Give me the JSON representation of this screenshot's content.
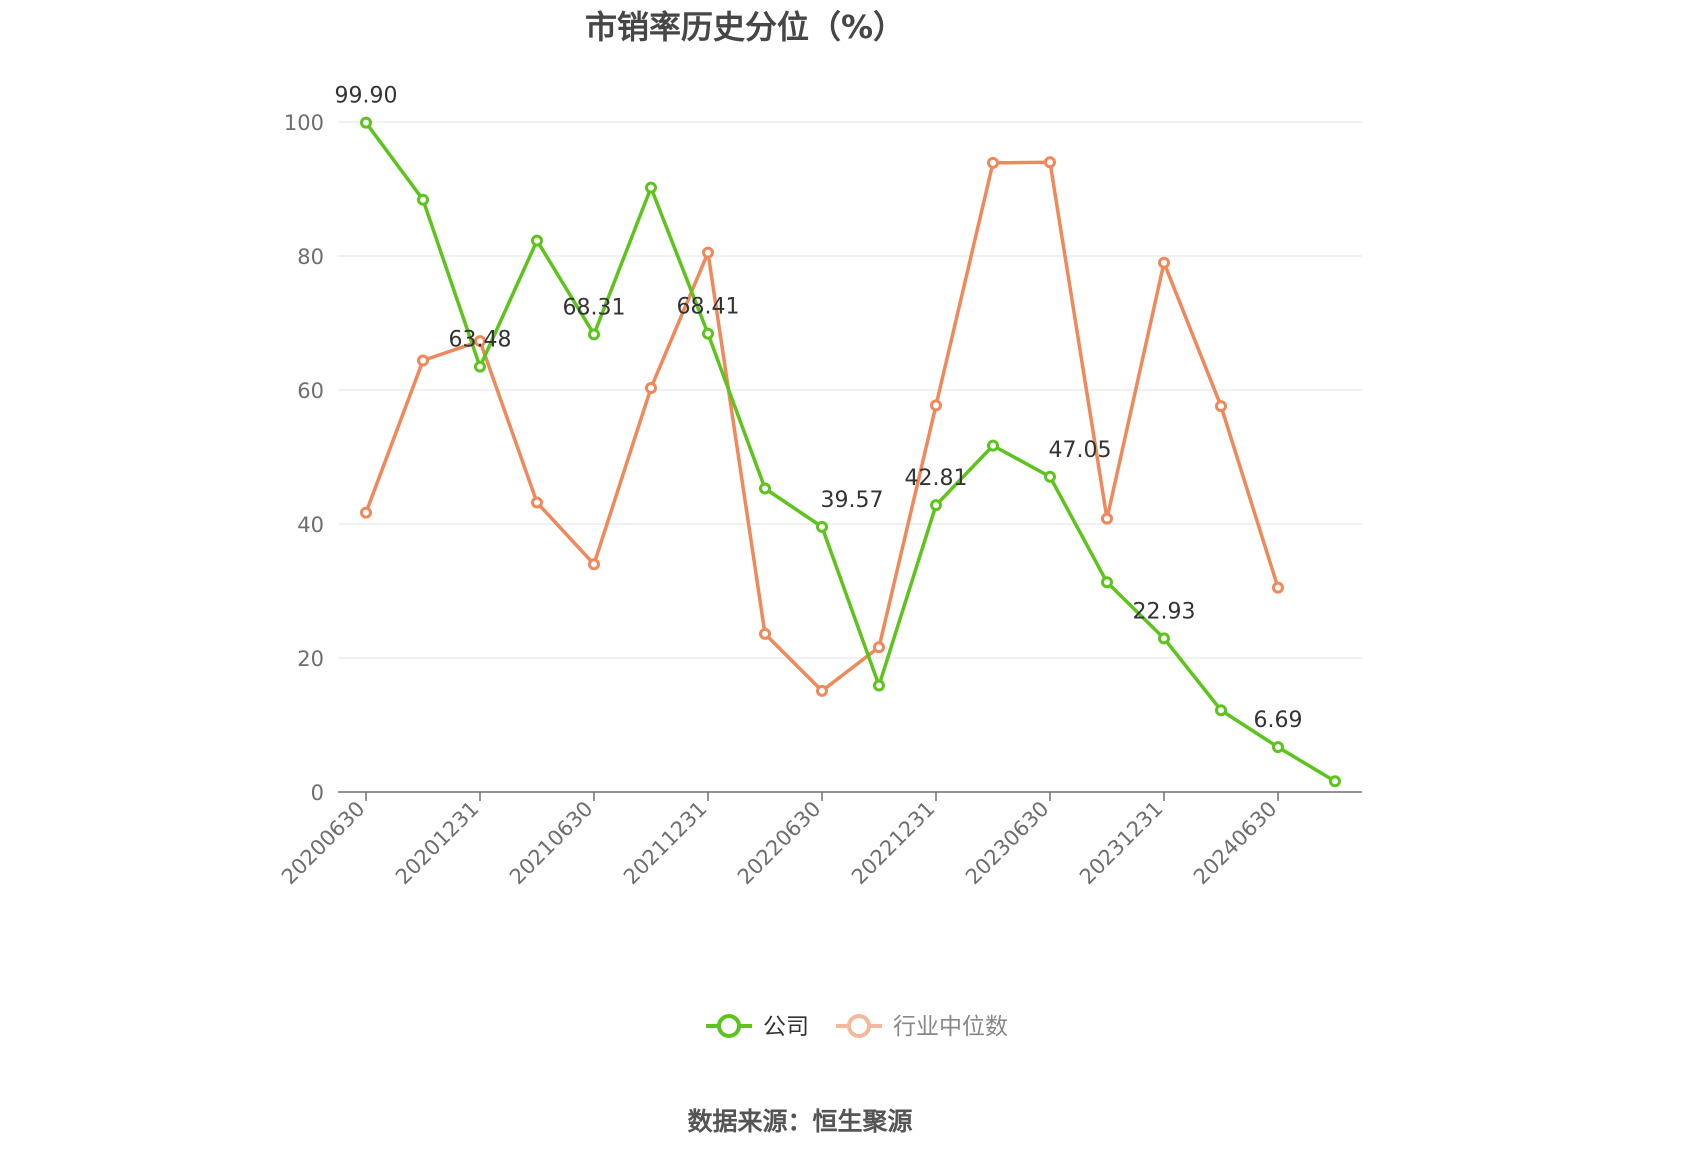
{
  "chart_data": {
    "type": "line",
    "title": "市销率历史分位（%）",
    "source": "数据来源：恒生聚源",
    "ylim": [
      0,
      100
    ],
    "yticks": [
      "0",
      "20",
      "40",
      "60",
      "80",
      "100"
    ],
    "x": [
      "20200630",
      "20200930",
      "20201231",
      "20210331",
      "20210630",
      "20210930",
      "20211231",
      "20220331",
      "20220630",
      "20220930",
      "20221231",
      "20230331",
      "20230630",
      "20230930",
      "20231231",
      "20240331",
      "20240630",
      "20240930"
    ],
    "xtick_labels": [
      "20200630",
      "20201231",
      "20210630",
      "20211231",
      "20220630",
      "20221231",
      "20230630",
      "20231231",
      "20240630"
    ],
    "grid": true,
    "legend_position": "bottom-center",
    "series": [
      {
        "name": "公司",
        "color": "#5cc41a",
        "values": [
          99.9,
          88.4,
          63.48,
          82.3,
          68.31,
          90.2,
          68.41,
          45.3,
          39.57,
          15.9,
          42.81,
          51.7,
          47.05,
          31.3,
          22.93,
          12.2,
          6.69,
          1.6
        ],
        "labels": [
          "99.90",
          "",
          "63.48",
          "",
          "68.31",
          "",
          "68.41",
          "",
          "39.57",
          "",
          "42.81",
          "",
          "47.05",
          "",
          "22.93",
          "",
          "6.69",
          ""
        ]
      },
      {
        "name": "行业中位数",
        "color": "#f0885a",
        "values": [
          41.7,
          64.4,
          67.3,
          43.2,
          34.0,
          60.3,
          80.5,
          23.6,
          15.1,
          21.6,
          57.7,
          93.9,
          94.0,
          40.8,
          79.0,
          57.6,
          30.5,
          null
        ]
      }
    ]
  }
}
